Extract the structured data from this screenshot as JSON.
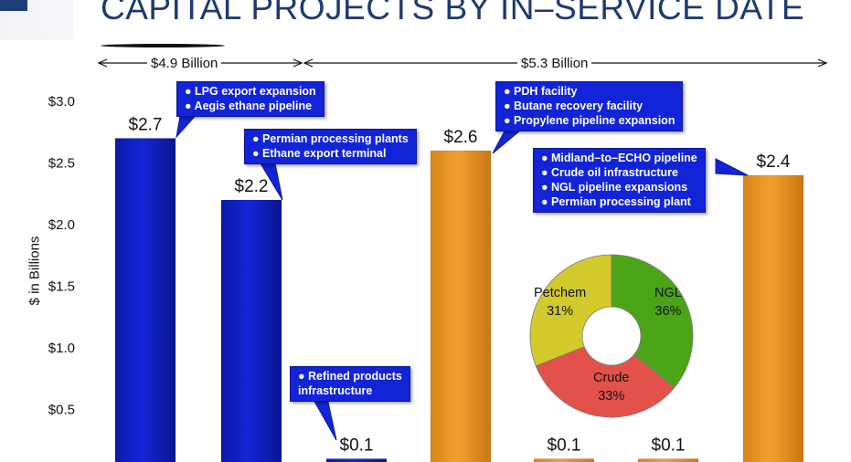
{
  "header": {
    "title": "CAPITAL PROJECTS BY IN–SERVICE DATE"
  },
  "groups": [
    {
      "label": "$4.9 Billion"
    },
    {
      "label": "$5.3 Billion"
    }
  ],
  "callouts": [
    {
      "lines": [
        "● LPG export expansion",
        "● Aegis ethane pipeline"
      ]
    },
    {
      "lines": [
        "● Permian processing plants",
        "● Ethane export terminal"
      ]
    },
    {
      "lines": [
        "● Refined products",
        "   infrastructure"
      ]
    },
    {
      "lines": [
        "● PDH facility",
        "● Butane recovery facility",
        "● Propylene pipeline expansion"
      ]
    },
    {
      "lines": [
        "● Midland–to–ECHO pipeline",
        "● Crude oil  infrastructure",
        "● NGL pipeline expansions",
        "● Permian processing plant"
      ]
    }
  ],
  "colors": {
    "group1_bar": "#1426d6",
    "group2_bar": "#f0a030",
    "callout_bg": "#1224d8",
    "title": "#1e3a70"
  },
  "chart_data": [
    {
      "type": "bar",
      "title": "",
      "xlabel": "",
      "ylabel": "$ in Billions",
      "ylim": [
        0,
        3.0
      ],
      "yticks": [
        "$3.0",
        "$2.5",
        "$2.0",
        "$1.5",
        "$1.0",
        "$0.5"
      ],
      "grid": false,
      "series": [
        {
          "values": [
            2.7,
            2.2,
            0.1,
            2.6,
            0.1,
            0.1,
            2.4
          ]
        }
      ],
      "data_labels": [
        "$2.7",
        "$2.2",
        "$0.1",
        "$2.6",
        "$0.1",
        "$0.1",
        "$2.4"
      ],
      "bar_groups": [
        1,
        1,
        1,
        2,
        2,
        2,
        2
      ]
    },
    {
      "type": "pie",
      "style": "donut",
      "title": "",
      "slices": [
        {
          "label": "NGL",
          "value": 36,
          "value_label": "36%",
          "color": "#4aa416"
        },
        {
          "label": "Crude",
          "value": 33,
          "value_label": "33%",
          "color": "#e2524a"
        },
        {
          "label": "Petchem",
          "value": 31,
          "value_label": "31%",
          "color": "#d2ca2a"
        }
      ]
    }
  ]
}
